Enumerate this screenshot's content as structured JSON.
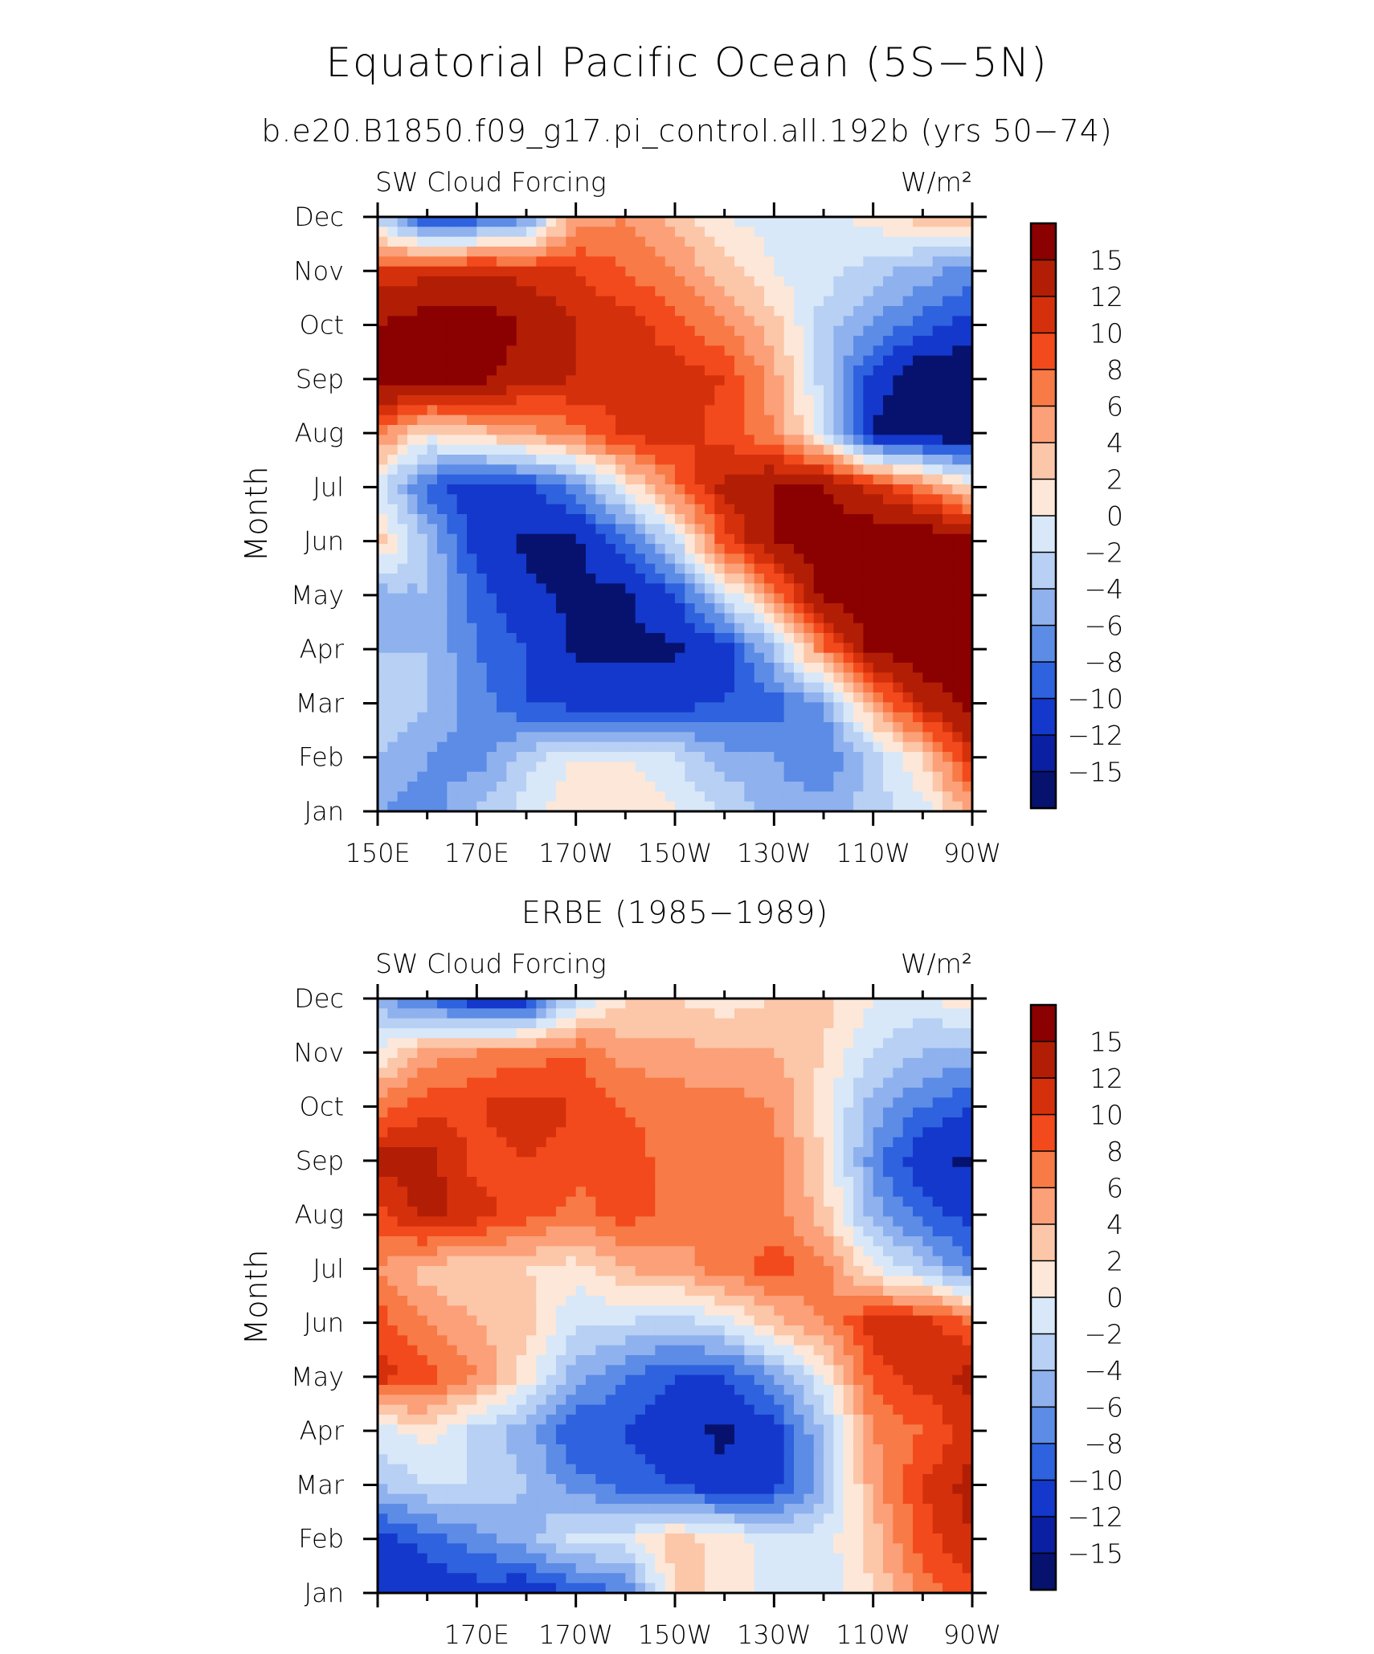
{
  "figure": {
    "title": "Equatorial Pacific Ocean (5S−5N)",
    "subtitle": "b.e20.B1850.f09_g17.pi_control.all.192b (yrs 50−74)"
  },
  "colorbar": {
    "levels": [
      "15",
      "12",
      "10",
      "8",
      "6",
      "4",
      "2",
      "0",
      "−2",
      "−4",
      "−6",
      "−8",
      "−10",
      "−12",
      "−15"
    ],
    "colors": [
      "#8b0000",
      "#b21e05",
      "#d5300c",
      "#f24a1c",
      "#f87a46",
      "#fba079",
      "#fcc6a8",
      "#fde7d8",
      "#d8e8f8",
      "#b7d0f4",
      "#8fb1ee",
      "#5d8ce6",
      "#2f62de",
      "#1438cc",
      "#0a1fa2",
      "#06126e"
    ]
  },
  "chart_data": [
    {
      "type": "heatmap",
      "panel_title": "",
      "left_label": "SW Cloud Forcing",
      "right_label": "W/m²",
      "ylabel": "Month",
      "y_categories": [
        "Jan",
        "Feb",
        "Mar",
        "Apr",
        "May",
        "Jun",
        "Jul",
        "Aug",
        "Sep",
        "Oct",
        "Nov",
        "Dec"
      ],
      "x_tick_labels": [
        "150E",
        "170E",
        "170W",
        "150W",
        "130W",
        "110W",
        "90W"
      ],
      "x_tick_values": [
        150,
        170,
        190,
        210,
        230,
        250,
        270
      ],
      "xlim": [
        150,
        270
      ],
      "x": [
        150,
        160,
        170,
        180,
        190,
        200,
        210,
        220,
        230,
        240,
        250,
        260,
        270
      ],
      "z_range": [
        -17,
        17
      ],
      "values": [
        [
          -7,
          -8,
          -5,
          -2,
          1,
          1,
          -1,
          -3,
          -6,
          -6,
          -4,
          -2,
          4
        ],
        [
          -5,
          -7,
          -8,
          -4,
          -1,
          -1,
          -3,
          -6,
          -7,
          -9,
          -4,
          1,
          10
        ],
        [
          -3,
          -5,
          -8,
          -11,
          -12,
          -12,
          -12,
          -11,
          -10,
          -7,
          4,
          12,
          15
        ],
        [
          -5,
          -5,
          -9,
          -11,
          -14,
          -14,
          -14,
          -12,
          -5,
          6,
          15,
          16,
          16
        ],
        [
          -6,
          -5,
          -10,
          -13,
          -14,
          -14,
          -11,
          -3,
          5,
          15,
          17,
          17,
          17
        ],
        [
          2,
          -5,
          -12,
          -14,
          -14,
          -10,
          -3,
          8,
          14,
          16,
          17,
          17,
          16
        ],
        [
          -2,
          -10,
          -13,
          -12,
          -8,
          -1,
          6,
          12,
          14,
          14,
          10,
          6,
          0
        ],
        [
          6,
          0,
          2,
          4,
          6,
          10,
          10,
          8,
          5,
          -2,
          -14,
          -16,
          -16
        ],
        [
          16,
          16,
          15,
          12,
          11,
          9,
          10,
          9,
          4,
          -4,
          -12,
          -16,
          -16
        ],
        [
          14,
          16,
          16,
          14,
          11,
          10,
          8,
          5,
          2,
          -4,
          -7,
          -10,
          -12
        ],
        [
          9,
          10,
          11,
          10,
          9,
          7,
          5,
          2,
          -1,
          -2,
          -4,
          -6,
          -8
        ],
        [
          -4,
          -12,
          -11,
          -8,
          4,
          5,
          2,
          -1,
          -2,
          -2,
          0,
          2,
          2
        ]
      ]
    },
    {
      "type": "heatmap",
      "panel_title": "ERBE (1985−1989)",
      "left_label": "SW Cloud Forcing",
      "right_label": "W/m²",
      "ylabel": "Month",
      "y_categories": [
        "Jan",
        "Feb",
        "Mar",
        "Apr",
        "May",
        "Jun",
        "Jul",
        "Aug",
        "Sep",
        "Oct",
        "Nov",
        "Dec"
      ],
      "x_tick_labels": [
        "170E",
        "170W",
        "150W",
        "130W",
        "110W",
        "90W"
      ],
      "x_tick_values": [
        170,
        190,
        210,
        230,
        250,
        270
      ],
      "xlim": [
        150,
        270
      ],
      "x": [
        150,
        160,
        170,
        180,
        190,
        200,
        210,
        220,
        230,
        240,
        250,
        260,
        270
      ],
      "z_range": [
        -17,
        17
      ],
      "values": [
        [
          -13,
          -13,
          -12,
          -13,
          -11,
          -9,
          1,
          1,
          -2,
          -3,
          1,
          6,
          8
        ],
        [
          -12,
          -10,
          -8,
          -6,
          -2,
          -2,
          2,
          0,
          -2,
          -2,
          2,
          8,
          11
        ],
        [
          -5,
          -3,
          -3,
          -5,
          -8,
          -10,
          -11,
          -13,
          -12,
          -6,
          4,
          9,
          12
        ],
        [
          -2,
          0,
          -4,
          -6,
          -11,
          -11,
          -13,
          -14,
          -12,
          -5,
          5,
          7,
          10
        ],
        [
          10,
          8,
          5,
          0,
          -6,
          -9,
          -11,
          -11,
          -7,
          -1,
          8,
          10,
          12
        ],
        [
          8,
          5,
          3,
          2,
          -3,
          -3,
          -4,
          -2,
          2,
          5,
          10,
          10,
          7
        ],
        [
          5,
          2,
          1,
          1,
          0,
          3,
          4,
          6,
          8,
          6,
          -1,
          -4,
          -9
        ],
        [
          8,
          12,
          10,
          8,
          6,
          8,
          6,
          5,
          6,
          2,
          -6,
          -10,
          -12
        ],
        [
          12,
          12,
          8,
          9,
          8,
          8,
          6,
          6,
          6,
          1,
          -8,
          -13,
          -14
        ],
        [
          6,
          8,
          9,
          10,
          9,
          7,
          6,
          6,
          5,
          0,
          -6,
          -9,
          -11
        ],
        [
          -1,
          4,
          5,
          6,
          7,
          4,
          4,
          3,
          3,
          1,
          -3,
          -5,
          -6
        ],
        [
          -6,
          -10,
          -13,
          -13,
          -3,
          1,
          1,
          0,
          1,
          2,
          -1,
          -2,
          1
        ]
      ]
    }
  ]
}
